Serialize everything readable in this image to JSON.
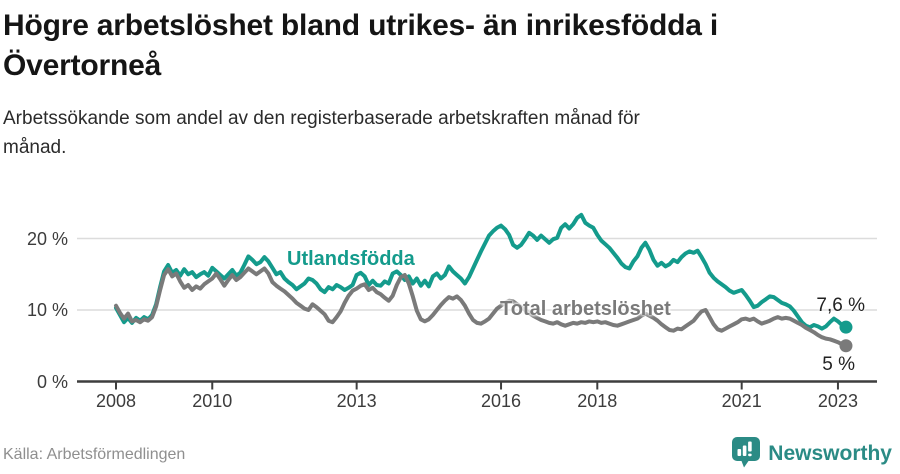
{
  "title": {
    "line1": "Högre arbetslöshet bland utrikes- än inrikesfödda i",
    "line2": "Övertorneå"
  },
  "subtitle": {
    "line1": "Arbetssökande som andel av den registerbaserade arbetskraften månad för",
    "line2": "månad."
  },
  "chart_data": {
    "type": "line",
    "unit": "%",
    "x_start_year": 2008,
    "x_step_months": 1,
    "ylim": [
      0,
      25
    ],
    "grid": "horizontal",
    "x_ticks": [
      {
        "value": 2008,
        "label": "2008"
      },
      {
        "value": 2010,
        "label": "2010"
      },
      {
        "value": 2013,
        "label": "2013"
      },
      {
        "value": 2016,
        "label": "2016"
      },
      {
        "value": 2018,
        "label": "2018"
      },
      {
        "value": 2021,
        "label": "2021"
      },
      {
        "value": 2023,
        "label": "2023"
      }
    ],
    "y_ticks": [
      {
        "value": 0,
        "label": "0 %"
      },
      {
        "value": 10,
        "label": "10 %"
      },
      {
        "value": 20,
        "label": "20 %"
      }
    ],
    "series": [
      {
        "name": "Utlandsfödda",
        "color": "#149b8c",
        "end_label": "7,6 %",
        "values": [
          10.3,
          9.3,
          8.3,
          8.9,
          8.2,
          8.9,
          8.5,
          9.0,
          8.7,
          9.3,
          10.8,
          13.2,
          15.4,
          16.3,
          15.2,
          15.6,
          14.8,
          15.7,
          15.0,
          15.3,
          14.6,
          15.0,
          15.3,
          14.8,
          15.9,
          15.4,
          14.9,
          14.4,
          15.0,
          15.6,
          14.8,
          15.2,
          16.3,
          17.5,
          17.0,
          16.4,
          16.7,
          17.4,
          16.8,
          15.9,
          15.0,
          15.3,
          14.4,
          13.9,
          13.5,
          12.9,
          13.3,
          13.7,
          14.4,
          14.2,
          13.7,
          12.9,
          12.5,
          13.2,
          12.9,
          13.5,
          13.2,
          12.8,
          13.1,
          13.5,
          14.9,
          15.2,
          14.7,
          13.5,
          14.1,
          13.5,
          13.4,
          14.0,
          13.7,
          15.1,
          15.4,
          14.9,
          14.2,
          14.7,
          13.7,
          14.4,
          13.4,
          14.1,
          13.3,
          14.7,
          15.1,
          14.4,
          14.9,
          16.1,
          15.4,
          14.9,
          14.4,
          13.7,
          14.6,
          15.8,
          17.0,
          18.2,
          19.3,
          20.4,
          21.0,
          21.5,
          21.8,
          21.3,
          20.5,
          19.1,
          18.7,
          19.1,
          19.9,
          20.8,
          20.4,
          19.8,
          20.4,
          19.9,
          19.4,
          19.9,
          20.1,
          21.5,
          22.0,
          21.4,
          22.0,
          22.9,
          23.3,
          22.2,
          21.8,
          21.5,
          20.5,
          19.7,
          19.2,
          18.7,
          18.0,
          17.3,
          16.5,
          16.0,
          15.8,
          16.8,
          17.5,
          18.7,
          19.4,
          18.4,
          17.0,
          16.2,
          16.6,
          16.1,
          16.4,
          17.0,
          16.7,
          17.4,
          17.9,
          18.2,
          18.0,
          18.3,
          17.4,
          16.4,
          15.2,
          14.5,
          14.0,
          13.6,
          13.2,
          12.7,
          12.4,
          12.6,
          12.8,
          12.1,
          11.3,
          10.4,
          10.6,
          11.1,
          11.5,
          11.9,
          11.8,
          11.4,
          11.0,
          10.8,
          10.5,
          9.9,
          9.1,
          8.3,
          7.8,
          7.6,
          7.9,
          7.7,
          7.4,
          7.7,
          8.3,
          8.8,
          8.4,
          7.9,
          7.6
        ]
      },
      {
        "name": "Total arbetslöshet",
        "color": "#7a7a7a",
        "end_label": "5 %",
        "values": [
          10.6,
          9.6,
          8.8,
          9.5,
          8.4,
          8.6,
          8.3,
          8.7,
          8.5,
          9.0,
          10.5,
          12.8,
          14.9,
          15.7,
          14.7,
          15.1,
          14.0,
          13.1,
          13.5,
          12.8,
          13.3,
          13.0,
          13.6,
          14.0,
          14.4,
          15.1,
          14.3,
          13.4,
          14.2,
          14.9,
          14.2,
          14.6,
          15.2,
          15.8,
          15.4,
          15.0,
          15.4,
          15.8,
          15.1,
          13.9,
          13.4,
          13.0,
          12.6,
          12.1,
          11.6,
          11.0,
          10.6,
          10.2,
          10.0,
          10.8,
          10.4,
          9.9,
          9.4,
          8.5,
          8.3,
          9.0,
          9.8,
          11.0,
          12.0,
          12.7,
          13.0,
          13.4,
          13.6,
          12.8,
          13.1,
          12.5,
          12.2,
          11.7,
          11.3,
          12.0,
          13.5,
          14.6,
          14.9,
          13.7,
          11.9,
          9.9,
          8.7,
          8.4,
          8.7,
          9.3,
          10.0,
          10.7,
          11.3,
          11.8,
          11.6,
          11.9,
          11.4,
          10.6,
          9.5,
          8.6,
          8.2,
          8.1,
          8.4,
          8.8,
          9.5,
          10.2,
          10.6,
          11.0,
          11.3,
          11.2,
          10.8,
          10.4,
          10.0,
          9.6,
          9.2,
          8.9,
          8.6,
          8.4,
          8.2,
          8.1,
          8.3,
          8.0,
          7.8,
          8.0,
          8.2,
          8.1,
          8.3,
          8.2,
          8.4,
          8.3,
          8.4,
          8.2,
          8.3,
          8.1,
          7.9,
          7.8,
          8.0,
          8.2,
          8.4,
          8.6,
          8.8,
          9.2,
          9.5,
          9.2,
          8.9,
          8.5,
          8.0,
          7.6,
          7.2,
          7.1,
          7.4,
          7.3,
          7.7,
          8.1,
          8.5,
          9.2,
          9.8,
          10.0,
          9.0,
          8.0,
          7.3,
          7.1,
          7.4,
          7.7,
          8.0,
          8.3,
          8.7,
          8.8,
          8.6,
          8.8,
          8.4,
          8.1,
          8.3,
          8.5,
          8.8,
          9.0,
          8.8,
          8.9,
          8.8,
          8.5,
          8.2,
          7.9,
          7.5,
          7.2,
          6.9,
          6.5,
          6.2,
          6.0,
          5.9,
          5.7,
          5.5,
          5.2,
          5.0
        ]
      }
    ]
  },
  "footer": {
    "source": "Källa: Arbetsförmedlingen",
    "brand": "Newsworthy"
  }
}
